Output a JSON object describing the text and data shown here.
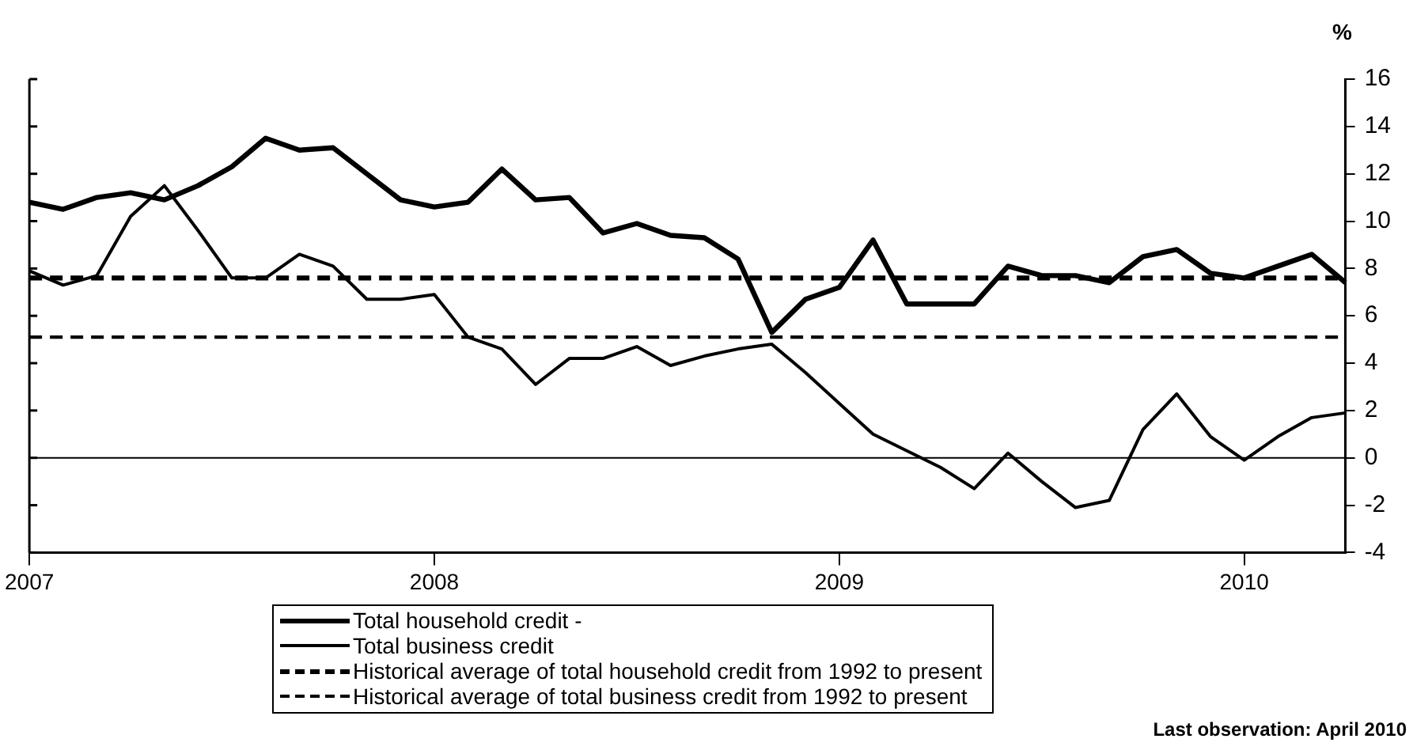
{
  "chart_data": {
    "type": "line",
    "ylabel": "%",
    "categories": [
      "2007",
      null,
      null,
      null,
      null,
      null,
      null,
      null,
      null,
      null,
      null,
      null,
      "2008",
      null,
      null,
      null,
      null,
      null,
      null,
      null,
      null,
      null,
      null,
      null,
      "2009",
      null,
      null,
      null,
      null,
      null,
      null,
      null,
      null,
      null,
      null,
      null,
      "2010",
      null,
      null,
      null
    ],
    "series": [
      {
        "name": "Total household credit -",
        "color": "#000000",
        "values": [
          10.8,
          10.5,
          11.0,
          11.2,
          10.9,
          11.5,
          12.3,
          13.5,
          13.0,
          13.1,
          12.0,
          10.9,
          10.6,
          10.8,
          12.2,
          10.9,
          11.0,
          9.5,
          9.9,
          9.4,
          9.3,
          8.4,
          5.3,
          6.7,
          7.2,
          9.2,
          6.5,
          6.5,
          6.5,
          8.1,
          7.7,
          7.7,
          7.4,
          8.5,
          8.8,
          7.8,
          7.6,
          8.1,
          8.6,
          7.4
        ]
      },
      {
        "name": "Total business credit",
        "color": "#000000",
        "values": [
          7.9,
          7.3,
          7.7,
          10.2,
          11.5,
          9.6,
          7.6,
          7.6,
          8.6,
          8.1,
          6.7,
          6.7,
          6.9,
          5.1,
          4.6,
          3.1,
          4.2,
          4.2,
          4.7,
          3.9,
          4.3,
          4.6,
          4.8,
          3.6,
          2.3,
          1.0,
          0.3,
          -0.4,
          -1.3,
          0.2,
          -1.0,
          -2.1,
          -1.8,
          1.2,
          2.7,
          0.9,
          -0.1,
          0.9,
          1.7,
          1.9
        ]
      }
    ],
    "ylim": [
      -4,
      16
    ],
    "yticks": [
      -4,
      -2,
      0,
      2,
      4,
      6,
      8,
      10,
      12,
      14,
      16
    ],
    "ref_lines": [
      {
        "axis": "y",
        "value": 7.6,
        "label": "Historical average of total household credit from 1992 to present",
        "color": "#000000",
        "line_style": "dashed"
      },
      {
        "axis": "y",
        "value": 5.1,
        "label": "Historical average of total business credit from 1992 to present",
        "color": "#000000",
        "line_style": "dashed"
      },
      {
        "axis": "y",
        "value": 0,
        "color": "#000000",
        "line_style": "solid"
      }
    ],
    "annotations": [
      "Last observation: April 2010"
    ],
    "legend": "bottom",
    "grid": false,
    "marker": "none",
    "line_style": "solid"
  }
}
